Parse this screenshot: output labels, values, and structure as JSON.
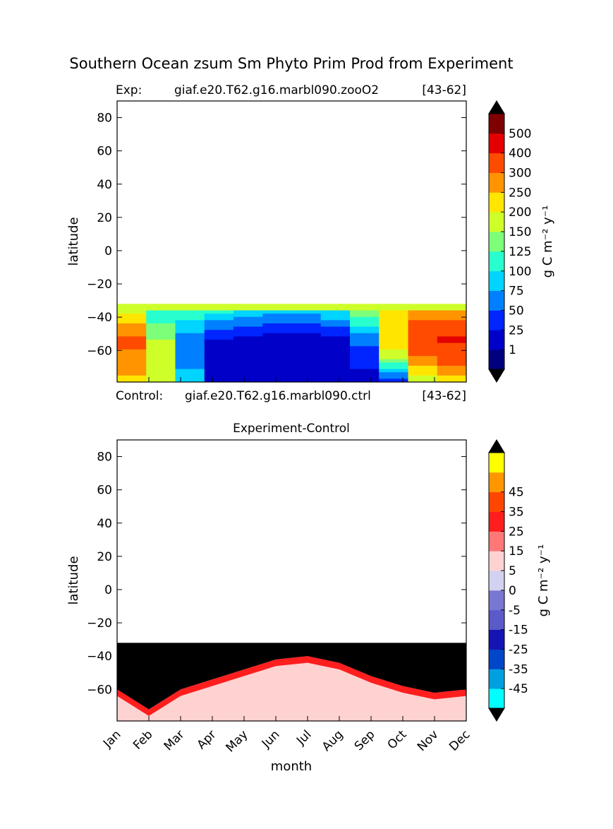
{
  "figure": {
    "title": "Southern Ocean zsum Sm Phyto Prim Prod from Experiment"
  },
  "panel_top": {
    "header_left": "Exp:",
    "header_case": "giaf.e20.T62.g16.marbl090.zooO2",
    "header_years": "[43-62]",
    "footer_left": "Control:",
    "footer_case": "giaf.e20.T62.g16.marbl090.ctrl",
    "footer_years": "[43-62]",
    "ylabel": "latitude",
    "colorbar_label": "g C m⁻² y⁻¹"
  },
  "panel_bottom": {
    "title": "Experiment-Control",
    "ylabel": "latitude",
    "xlabel": "month",
    "colorbar_label": "g C m⁻² y⁻¹"
  },
  "chart_data": [
    {
      "type": "heatmap",
      "title": "Exp: giaf.e20.T62.g16.marbl090.zooO2 [43-62]",
      "xlabel": "",
      "ylabel": "latitude",
      "x_categories": [
        "Jan",
        "Feb",
        "Mar",
        "Apr",
        "May",
        "Jun",
        "Jul",
        "Aug",
        "Sep",
        "Oct",
        "Nov",
        "Dec"
      ],
      "ylim": [
        -79,
        90
      ],
      "yticks": [
        -60,
        -40,
        -20,
        0,
        20,
        40,
        60,
        80
      ],
      "data_lat_range": [
        -79,
        -32
      ],
      "colorbar": {
        "label": "g C m⁻² y⁻¹",
        "levels": [
          1,
          25,
          50,
          75,
          100,
          125,
          150,
          200,
          250,
          300,
          400,
          500
        ],
        "colors": [
          "#00007f",
          "#0000c8",
          "#0025ff",
          "#0080ff",
          "#00d4ff",
          "#29ffce",
          "#7dff7a",
          "#ceff29",
          "#ffe500",
          "#ff9400",
          "#ff4b00",
          "#e40000",
          "#7f0000"
        ],
        "extend": "both",
        "extend_colors": [
          "#000000",
          "#000000"
        ]
      },
      "bands_by_month": {
        "upper_edge_value": 150,
        "lat_high_value": [
          180,
          100,
          120,
          110,
          95,
          90,
          90,
          100,
          150,
          220,
          260,
          240
        ],
        "lat_mid_value": [
          320,
          150,
          60,
          25,
          15,
          10,
          10,
          20,
          60,
          250,
          380,
          410
        ],
        "lat_low_value": [
          240,
          190,
          80,
          20,
          3,
          1,
          1,
          3,
          10,
          40,
          180,
          230
        ]
      }
    },
    {
      "type": "heatmap",
      "title": "Experiment-Control",
      "xlabel": "month",
      "ylabel": "latitude",
      "x_categories": [
        "Jan",
        "Feb",
        "Mar",
        "Apr",
        "May",
        "Jun",
        "Jul",
        "Aug",
        "Sep",
        "Oct",
        "Nov",
        "Dec"
      ],
      "ylim": [
        -79,
        90
      ],
      "yticks": [
        -60,
        -40,
        -20,
        0,
        20,
        40,
        60,
        80
      ],
      "data_lat_range": [
        -79,
        -32
      ],
      "colorbar": {
        "label": "g C m⁻² y⁻¹",
        "levels": [
          -45,
          -35,
          -25,
          -15,
          -5,
          0,
          5,
          15,
          25,
          35,
          45
        ],
        "colors": [
          "#00ffff",
          "#00a0e0",
          "#0046c8",
          "#1414b4",
          "#5a5ac8",
          "#7878d2",
          "#d2d2f0",
          "#ffd2d2",
          "#ff7878",
          "#ff1e1e",
          "#ff4600",
          "#ff9600",
          "#ffff00"
        ],
        "extend": "both",
        "extend_colors": [
          "#000000",
          "#000000"
        ]
      },
      "black_region_boundary_lat": [
        -60,
        -72,
        -60,
        -54,
        -48,
        -42,
        -40,
        -44,
        -52,
        -58,
        -62,
        -60
      ]
    }
  ]
}
